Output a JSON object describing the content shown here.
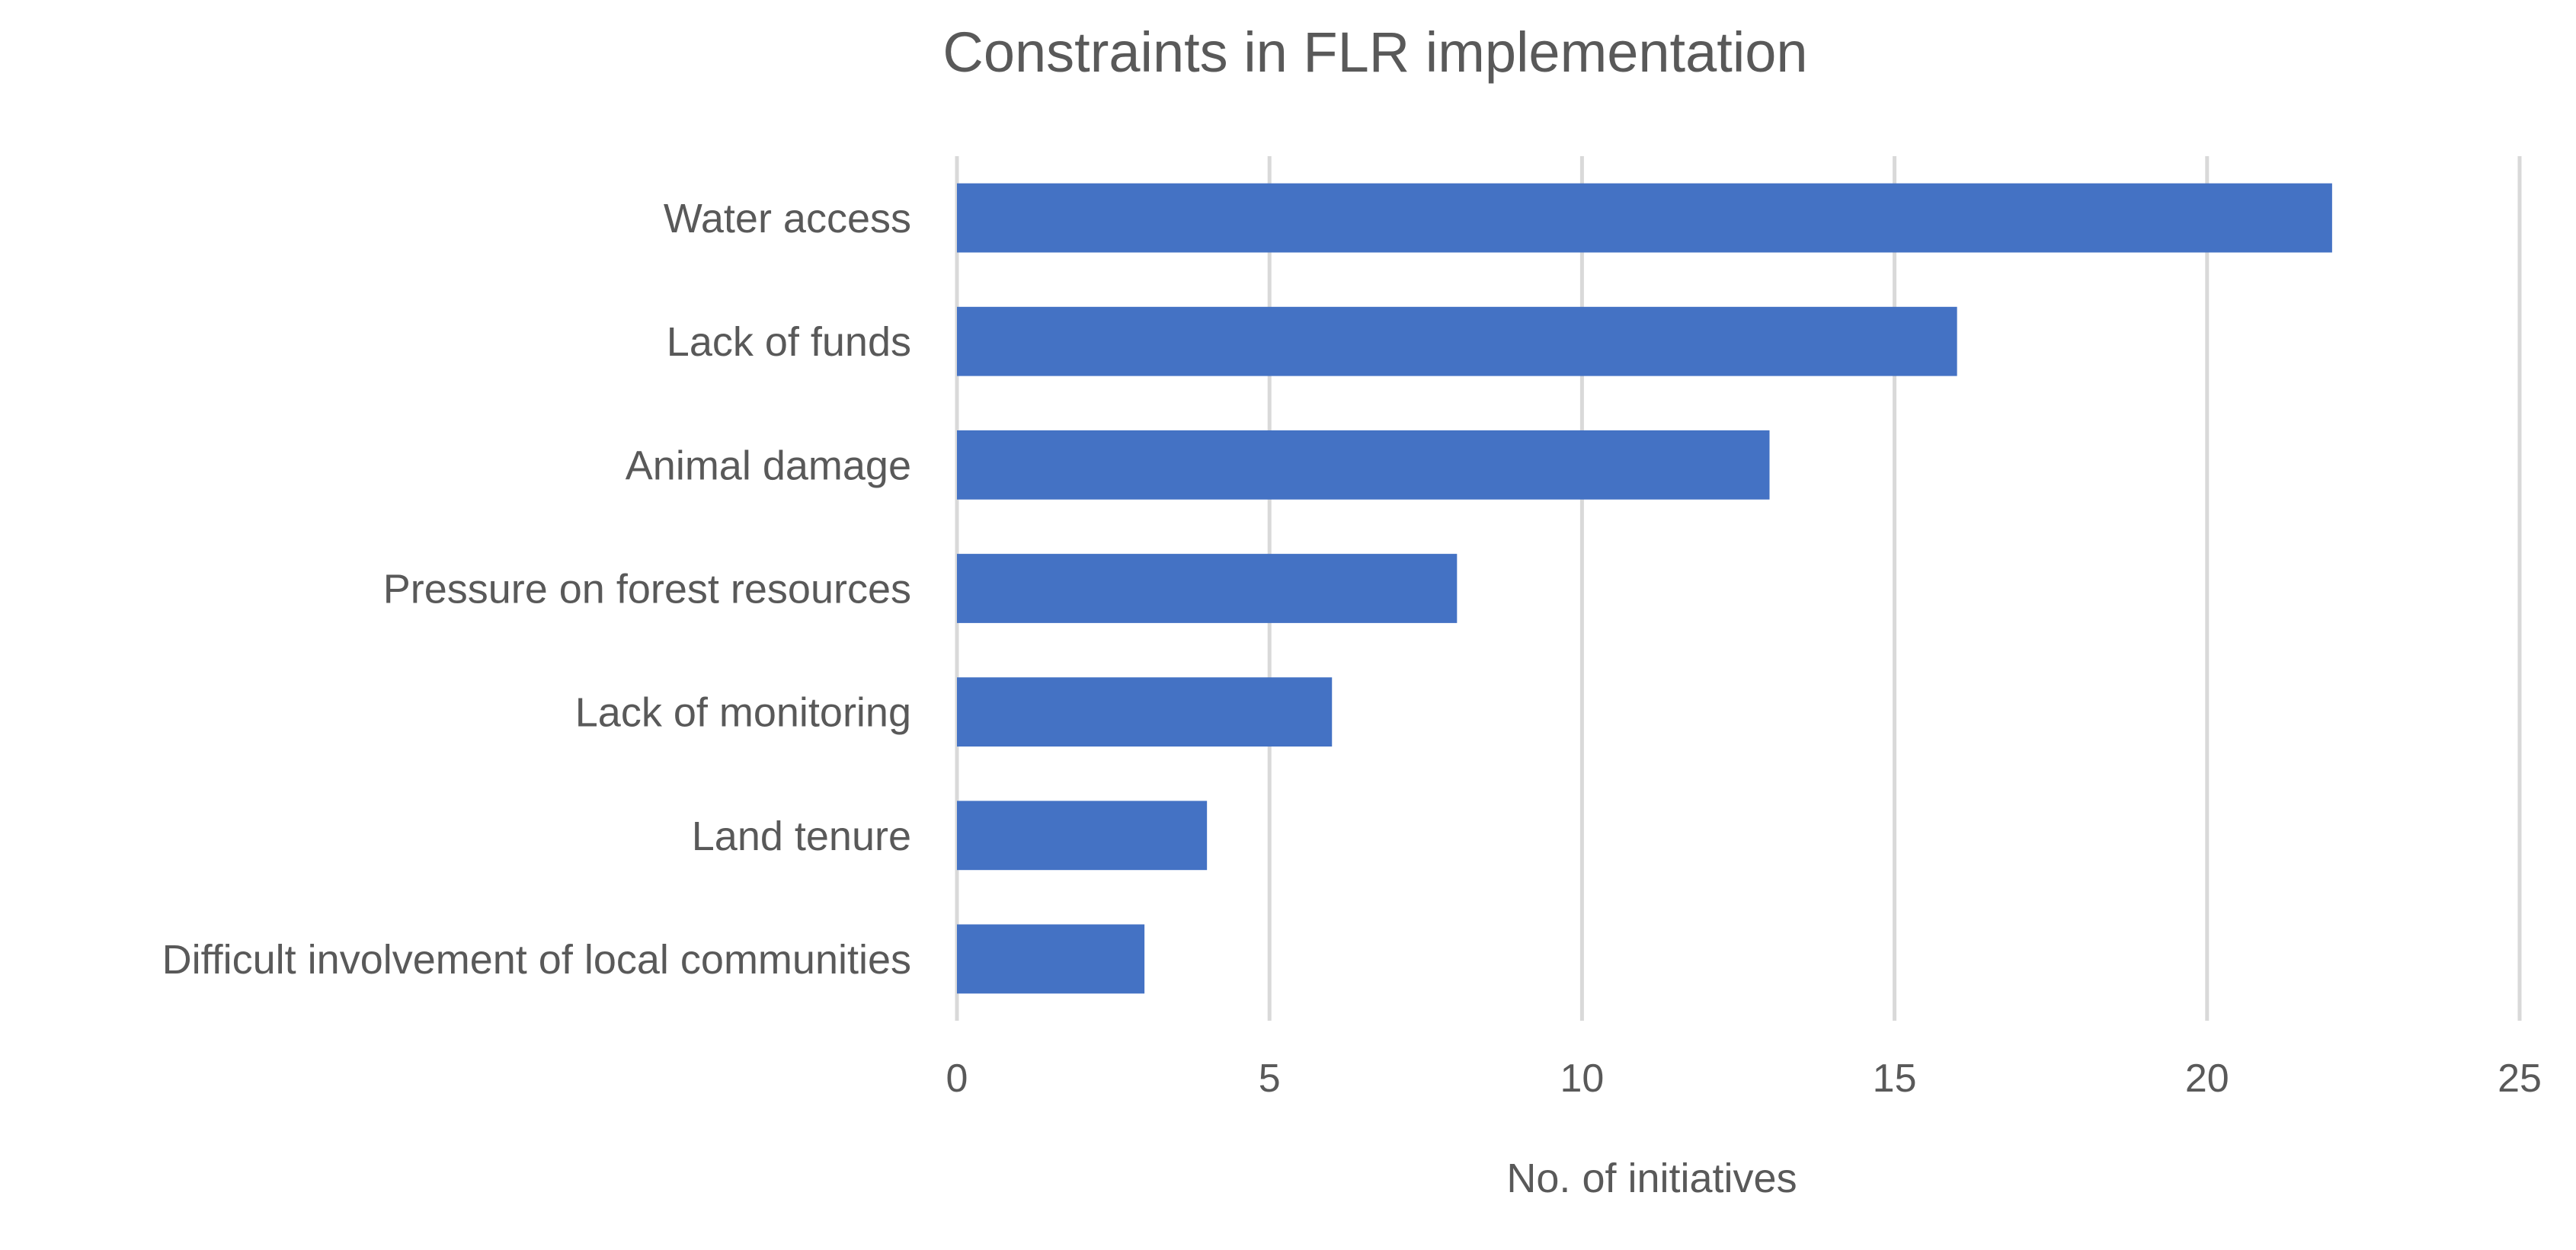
{
  "chart_data": {
    "type": "bar",
    "orientation": "horizontal",
    "title": "Constraints in FLR implementation",
    "xlabel": "No. of initiatives",
    "ylabel": "",
    "categories": [
      "Water access",
      "Lack of funds",
      "Animal damage",
      "Pressure on forest resources",
      "Lack of monitoring",
      "Land tenure",
      "Difficult involvement of local communities"
    ],
    "values": [
      22,
      16,
      13,
      8,
      6,
      4,
      3
    ],
    "xlim": [
      0,
      25
    ],
    "xticks": [
      0,
      5,
      10,
      15,
      20,
      25
    ],
    "grid": "vertical",
    "legend": "none",
    "bar_color": "#4472C4"
  }
}
